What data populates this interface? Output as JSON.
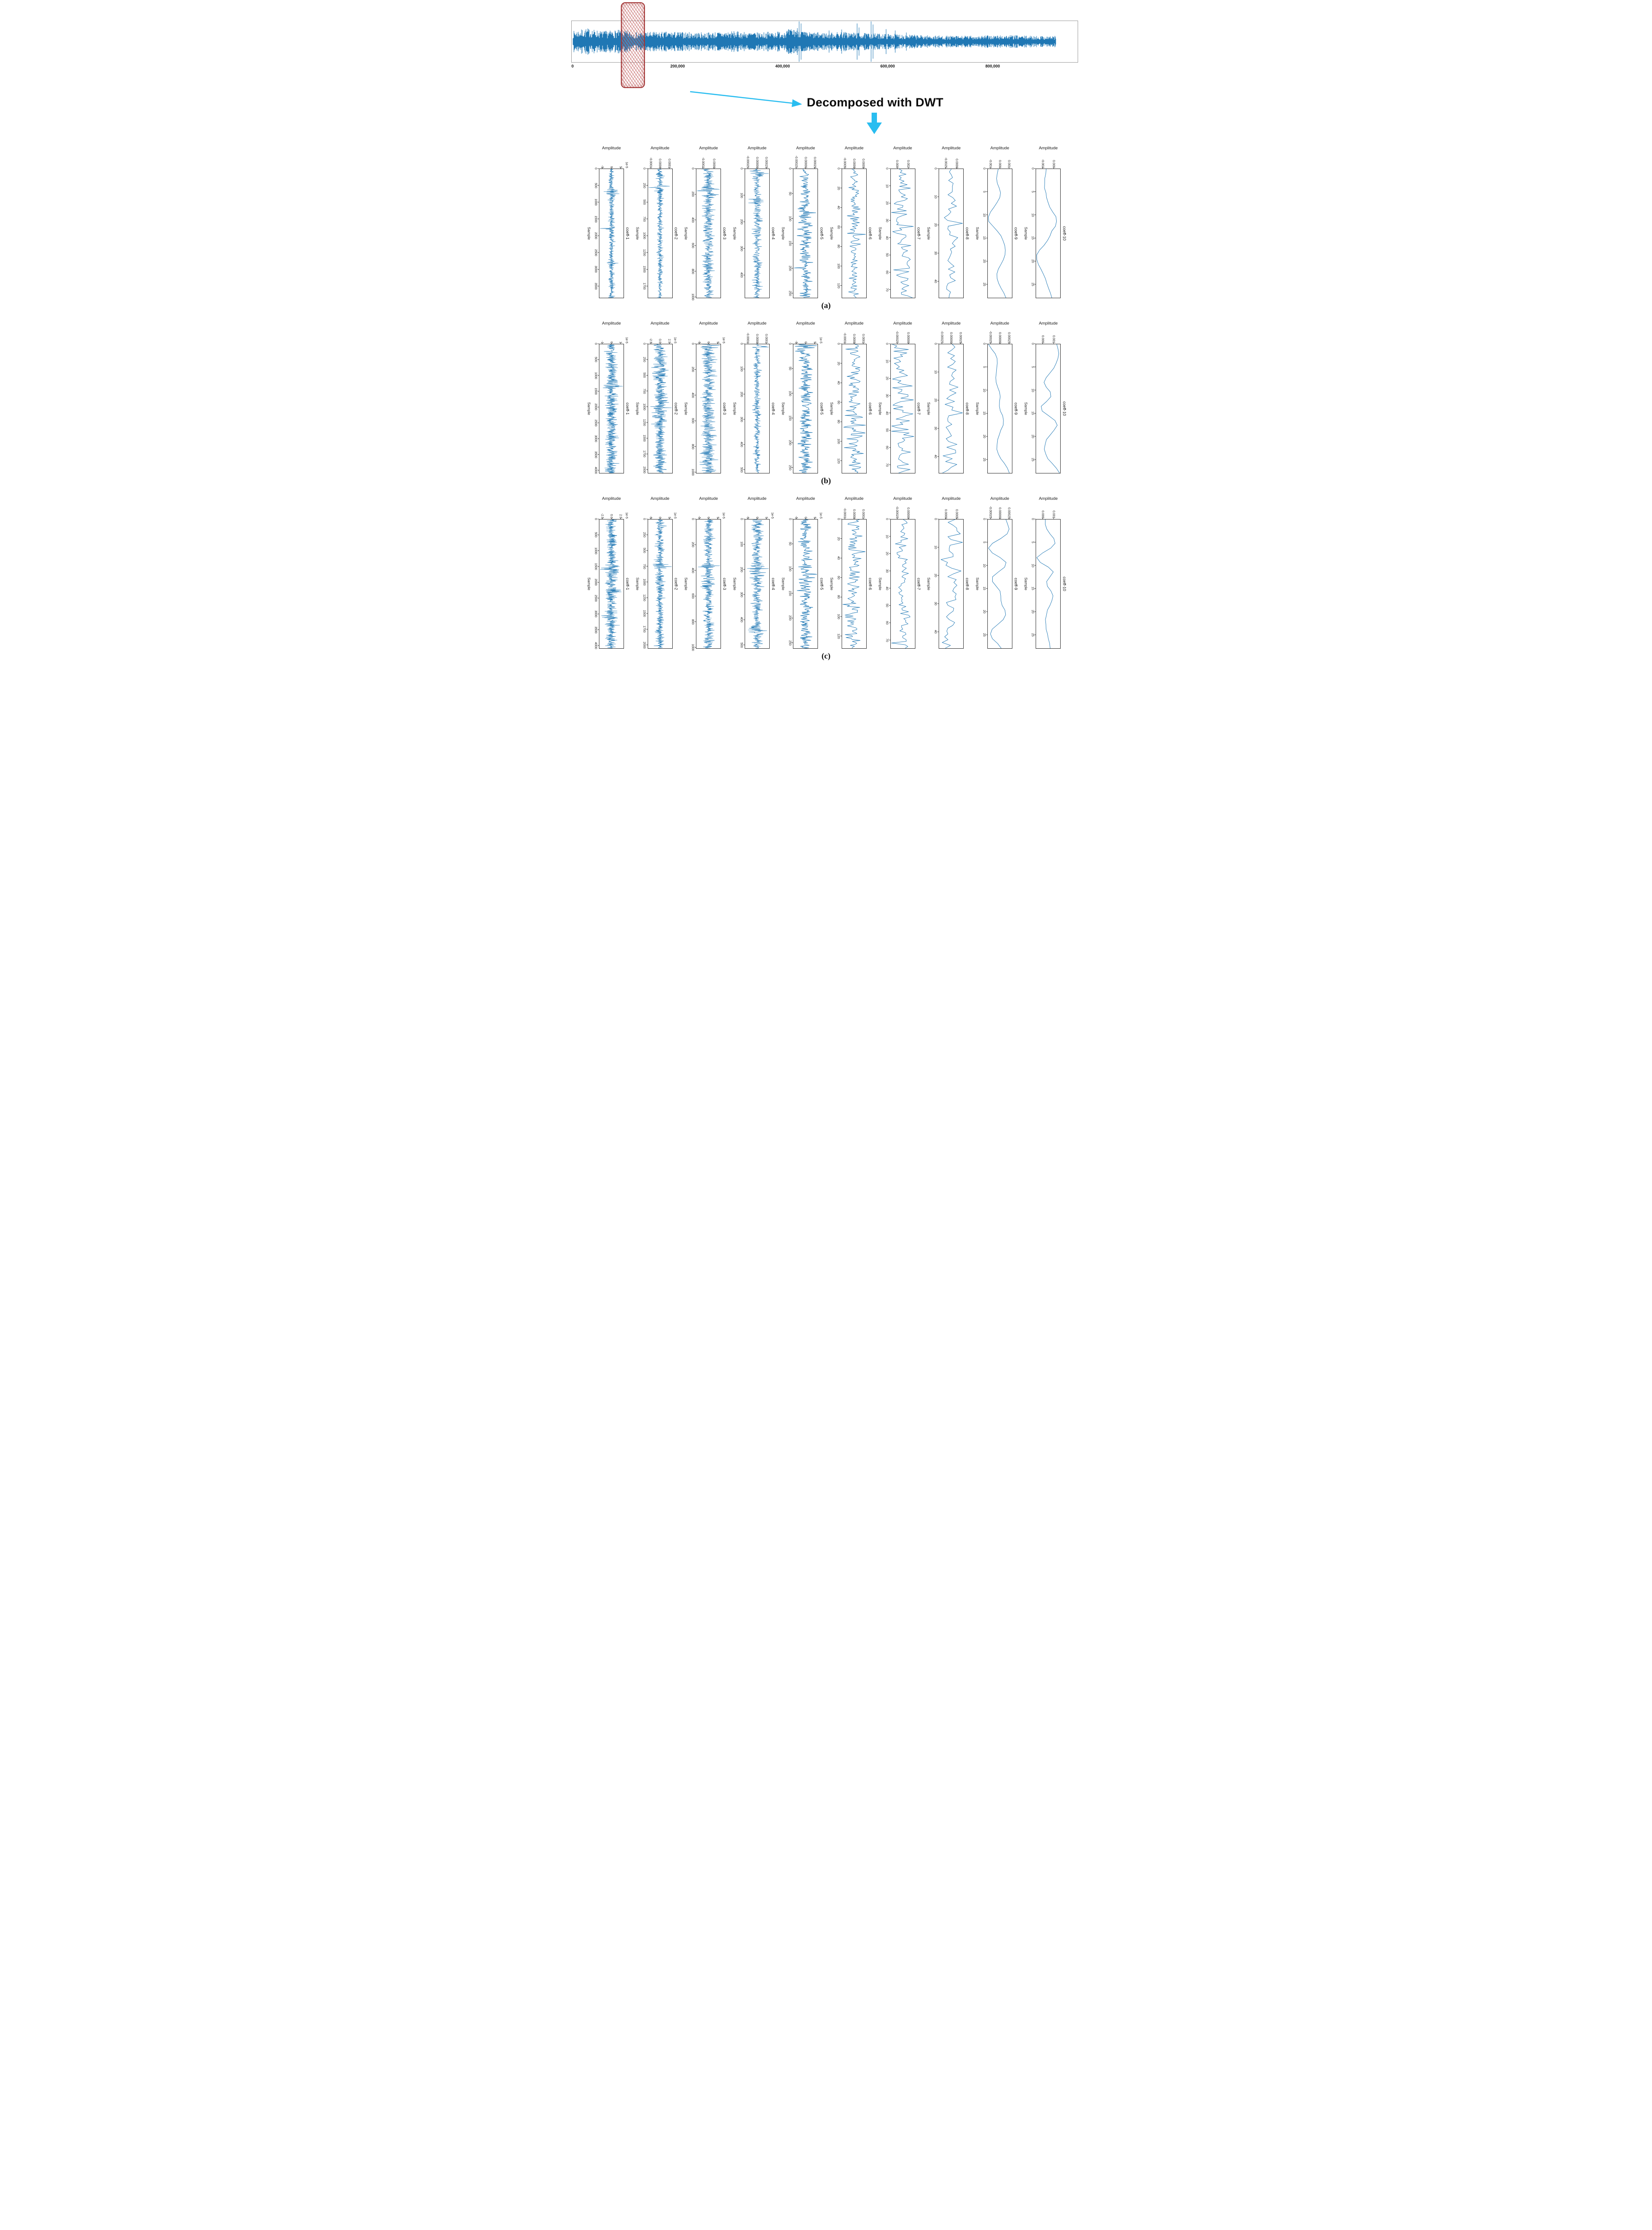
{
  "figure": {
    "annotation": "Decomposed with DWT",
    "row_labels": [
      "(a)",
      "(b)",
      "(c)"
    ],
    "axis_titles": {
      "amplitude": "Amplitude",
      "sample": "Sample"
    },
    "line_color": "#1f77b4",
    "accent_color": "#29bdf0",
    "highlight_border": "#a23535",
    "coeff_labels": [
      "coeff-1",
      "coeff-2",
      "coeff-3",
      "coeff-4",
      "coeff-5",
      "coeff-6",
      "coeff-7",
      "coeff-8",
      "coeff-9",
      "coeff-10"
    ]
  },
  "chart_data": [
    {
      "type": "line",
      "id": "raw-signal",
      "x_ticks": [
        "0",
        "200,000",
        "400,000",
        "600,000",
        "800,000"
      ],
      "x_tick_values": [
        0,
        200000,
        400000,
        600000,
        800000
      ],
      "x_max": 955000,
      "signal_end": 920000,
      "seed": 7,
      "envelope": [
        [
          0,
          0.55
        ],
        [
          0.03,
          0.7
        ],
        [
          0.06,
          0.55
        ],
        [
          0.1,
          0.62
        ],
        [
          0.13,
          0.5
        ],
        [
          0.2,
          0.52
        ],
        [
          0.27,
          0.48
        ],
        [
          0.33,
          0.55
        ],
        [
          0.38,
          0.48
        ],
        [
          0.43,
          0.55
        ],
        [
          0.465,
          0.75
        ],
        [
          0.48,
          0.5
        ],
        [
          0.52,
          0.48
        ],
        [
          0.56,
          0.52
        ],
        [
          0.6,
          0.45
        ],
        [
          0.64,
          0.42
        ],
        [
          0.68,
          0.4
        ],
        [
          0.72,
          0.34
        ],
        [
          0.78,
          0.3
        ],
        [
          0.84,
          0.32
        ],
        [
          0.9,
          0.34
        ],
        [
          0.95,
          0.3
        ],
        [
          1,
          0.3
        ]
      ],
      "spikes": [
        [
          0.468,
          1.0
        ],
        [
          0.472,
          0.9
        ],
        [
          0.53,
          0.55
        ],
        [
          0.556,
          0.6
        ],
        [
          0.588,
          0.9
        ],
        [
          0.592,
          0.7
        ],
        [
          0.617,
          1.0
        ],
        [
          0.621,
          0.85
        ],
        [
          0.648,
          0.62
        ],
        [
          0.667,
          0.55
        ],
        [
          0.69,
          0.45
        ]
      ]
    },
    {
      "type": "line",
      "id": "a",
      "row_label": "(a)",
      "subplots": [
        {
          "label": "coeff-1",
          "amp": [
            "-5",
            "0",
            "5"
          ],
          "off": "1e-5",
          "sticks": [
            0,
            500,
            1000,
            1500,
            2000,
            2500,
            3000,
            3500
          ],
          "smax": 3860,
          "n": 700,
          "kind": "dense",
          "seed": 11,
          "bumps": [
            [
              0.17,
              2.6,
              0.018
            ],
            [
              0.2,
              1.4,
              0.01
            ],
            [
              0.465,
              2.2,
              0.012
            ],
            [
              0.52,
              0.7,
              0.01
            ],
            [
              0.73,
              0.9,
              0.01
            ]
          ]
        },
        {
          "label": "coeff-2",
          "amp": [
            "-0.0001",
            "0.0000",
            "0.0001"
          ],
          "off": null,
          "sticks": [
            0,
            250,
            500,
            750,
            1000,
            1250,
            1500,
            1750
          ],
          "smax": 1930,
          "n": 640,
          "kind": "dense",
          "seed": 12,
          "bumps": [
            [
              0.05,
              0.8,
              0.02
            ],
            [
              0.14,
              2.8,
              0.012
            ],
            [
              0.175,
              2.0,
              0.01
            ]
          ]
        },
        {
          "label": "coeff-3",
          "amp": [
            "-0.0002",
            "0.0000"
          ],
          "off": null,
          "sticks": [
            0,
            200,
            400,
            600,
            800,
            1000
          ],
          "smax": 1010,
          "n": 560,
          "kind": "dense",
          "seed": 13,
          "bumps": [
            [
              0.16,
              2.4,
              0.012
            ],
            [
              0.2,
              1.2,
              0.008
            ],
            [
              0.75,
              0.7,
              0.01
            ]
          ]
        },
        {
          "label": "coeff-4",
          "amp": [
            "-0.00025",
            "0.00000",
            "0.00025"
          ],
          "off": null,
          "sticks": [
            0,
            100,
            200,
            300,
            400
          ],
          "smax": 487,
          "n": 487,
          "kind": "dense",
          "seed": 14,
          "bumps": [
            [
              0.03,
              2.6,
              0.02
            ],
            [
              0.25,
              1.0,
              0.02
            ],
            [
              0.5,
              0.8,
              0.03
            ],
            [
              0.9,
              0.7,
              0.02
            ]
          ]
        },
        {
          "label": "coeff-5",
          "amp": [
            "-0.00025",
            "0.00000",
            "0.00025"
          ],
          "off": null,
          "sticks": [
            0,
            50,
            100,
            150,
            200,
            250
          ],
          "smax": 260,
          "n": 260,
          "kind": "mid",
          "seed": 15,
          "bumps": [
            [
              0.4,
              0.9,
              0.12
            ],
            [
              0.75,
              0.5,
              0.1
            ]
          ]
        },
        {
          "label": "coeff-6",
          "amp": [
            "-0.0005",
            "0.0000",
            "0.0005"
          ],
          "off": null,
          "sticks": [
            0,
            20,
            40,
            60,
            80,
            100,
            120
          ],
          "smax": 133,
          "n": 133,
          "kind": "mid",
          "seed": 16,
          "bumps": [
            [
              0.45,
              0.8,
              0.15
            ]
          ]
        },
        {
          "label": "coeff-7",
          "amp": [
            "0.000",
            "0.002"
          ],
          "off": null,
          "sticks": [
            0,
            10,
            20,
            30,
            40,
            50,
            60,
            70
          ],
          "smax": 75,
          "n": 75,
          "kind": "sparse",
          "seed": 17,
          "bumps": [
            [
              0.45,
              2.2,
              0.04
            ]
          ]
        },
        {
          "label": "coeff-8",
          "amp": [
            "-0.0025",
            "0.0000"
          ],
          "off": null,
          "sticks": [
            0,
            10,
            20,
            30,
            40
          ],
          "smax": 46,
          "n": 46,
          "kind": "sparse",
          "seed": 18,
          "bumps": [
            [
              0.42,
              1.6,
              0.07
            ]
          ]
        },
        {
          "label": "coeff-9",
          "amp": [
            "-0.001",
            "0.000",
            "0.001"
          ],
          "off": null,
          "sticks": [
            0,
            5,
            10,
            15,
            20,
            25
          ],
          "smax": 28,
          "n": 28,
          "kind": "smooth",
          "seed": 19,
          "bumps": [
            [
              0.35,
              1.2,
              0.15
            ]
          ]
        },
        {
          "label": "coeff-10",
          "amp": [
            "-0.002",
            "0.000"
          ],
          "off": null,
          "sticks": [
            0,
            5,
            10,
            15,
            20,
            25
          ],
          "smax": 28,
          "n": 28,
          "kind": "smooth",
          "seed": 20,
          "bumps": [
            [
              0.55,
              1.0,
              0.2
            ]
          ]
        }
      ]
    },
    {
      "type": "line",
      "id": "b",
      "row_label": "(b)",
      "subplots": [
        {
          "label": "coeff-1",
          "amp": [
            "-1",
            "0",
            "1"
          ],
          "off": "1e-5",
          "sticks": [
            0,
            500,
            1000,
            1500,
            2000,
            2500,
            3000,
            3500,
            4000
          ],
          "smax": 4100,
          "n": 700,
          "kind": "dense",
          "seed": 21,
          "bumps": [
            [
              0.3,
              1.4,
              0.02
            ],
            [
              0.33,
              1.0,
              0.015
            ],
            [
              0.5,
              0.6,
              0.02
            ]
          ]
        },
        {
          "label": "coeff-2",
          "amp": [
            "-2.5",
            "0.0",
            "2.5"
          ],
          "off": "1e-5",
          "sticks": [
            0,
            250,
            500,
            750,
            1000,
            1250,
            1500,
            1750,
            2000
          ],
          "smax": 2060,
          "n": 660,
          "kind": "dense",
          "seed": 22,
          "bumps": [
            [
              0.2,
              0.5,
              0.05
            ],
            [
              0.5,
              0.4,
              0.05
            ]
          ]
        },
        {
          "label": "coeff-3",
          "amp": [
            "-5",
            "0",
            "5"
          ],
          "off": "1e-5",
          "sticks": [
            0,
            200,
            400,
            600,
            800,
            1000
          ],
          "smax": 1010,
          "n": 560,
          "kind": "dense",
          "seed": 23,
          "bumps": [
            [
              0.02,
              1.8,
              0.008
            ]
          ]
        },
        {
          "label": "coeff-4",
          "amp": [
            "-0.0001",
            "0.0000",
            "0.0001"
          ],
          "off": null,
          "sticks": [
            0,
            100,
            200,
            300,
            400,
            500
          ],
          "smax": 515,
          "n": 515,
          "kind": "dense",
          "seed": 24,
          "bumps": [
            [
              0.02,
              5.0,
              0.006
            ],
            [
              0.5,
              0.5,
              0.05
            ]
          ]
        },
        {
          "label": "coeff-5",
          "amp": [
            "-5",
            "0",
            "5"
          ],
          "off": "1e-5",
          "sticks": [
            0,
            50,
            100,
            150,
            200,
            250
          ],
          "smax": 262,
          "n": 262,
          "kind": "mid",
          "seed": 25,
          "bumps": [
            [
              0.05,
              1.2,
              0.03
            ]
          ]
        },
        {
          "label": "coeff-6",
          "amp": [
            "-0.0001",
            "0.0000",
            "0.0001"
          ],
          "off": null,
          "sticks": [
            0,
            20,
            40,
            60,
            80,
            100,
            120
          ],
          "smax": 133,
          "n": 133,
          "kind": "mid",
          "seed": 26,
          "bumps": [
            [
              0.65,
              0.7,
              0.1
            ]
          ]
        },
        {
          "label": "coeff-7",
          "amp": [
            "-0.00025",
            "0.00000"
          ],
          "off": null,
          "sticks": [
            0,
            10,
            20,
            30,
            40,
            50,
            60,
            70
          ],
          "smax": 75,
          "n": 75,
          "kind": "sparse",
          "seed": 27,
          "bumps": []
        },
        {
          "label": "coeff-8",
          "amp": [
            "-0.00025",
            "0.00000",
            "0.00025"
          ],
          "off": null,
          "sticks": [
            0,
            10,
            20,
            30,
            40
          ],
          "smax": 46,
          "n": 46,
          "kind": "sparse",
          "seed": 28,
          "bumps": []
        },
        {
          "label": "coeff-9",
          "amp": [
            "-0.00025",
            "0.00000",
            "0.00025"
          ],
          "off": null,
          "sticks": [
            0,
            5,
            10,
            15,
            20,
            25
          ],
          "smax": 28,
          "n": 28,
          "kind": "smooth",
          "seed": 29,
          "bumps": []
        },
        {
          "label": "coeff-10",
          "amp": [
            "0.000",
            "0.001"
          ],
          "off": null,
          "sticks": [
            0,
            5,
            10,
            15,
            20,
            25
          ],
          "smax": 28,
          "n": 28,
          "kind": "smooth",
          "seed": 30,
          "bumps": [
            [
              0.4,
              1.1,
              0.18
            ]
          ]
        }
      ]
    },
    {
      "type": "line",
      "id": "c",
      "row_label": "(c)",
      "subplots": [
        {
          "label": "coeff-1",
          "amp": [
            "-2.5",
            "0.0",
            "2.5"
          ],
          "off": "1e-5",
          "sticks": [
            0,
            500,
            1000,
            1500,
            2000,
            2500,
            3000,
            3500,
            4000
          ],
          "smax": 4100,
          "n": 700,
          "kind": "dense",
          "seed": 31,
          "bumps": [
            [
              0.38,
              1.1,
              0.03
            ],
            [
              0.56,
              1.0,
              0.015
            ],
            [
              0.76,
              1.2,
              0.012
            ]
          ]
        },
        {
          "label": "coeff-2",
          "amp": [
            "-5",
            "0",
            "5"
          ],
          "off": "1e-5",
          "sticks": [
            0,
            250,
            500,
            750,
            1000,
            1250,
            1500,
            1750,
            2000
          ],
          "smax": 2060,
          "n": 660,
          "kind": "dense",
          "seed": 32,
          "bumps": [
            [
              0.36,
              1.4,
              0.02
            ]
          ]
        },
        {
          "label": "coeff-3",
          "amp": [
            "-5",
            "0",
            "5"
          ],
          "off": "1e-5",
          "sticks": [
            0,
            200,
            400,
            600,
            800,
            1000
          ],
          "smax": 1010,
          "n": 560,
          "kind": "dense",
          "seed": 33,
          "bumps": [
            [
              0.36,
              1.6,
              0.015
            ],
            [
              0.5,
              0.8,
              0.02
            ]
          ]
        },
        {
          "label": "coeff-4",
          "amp": [
            "-5",
            "0",
            "5"
          ],
          "off": "1e-5",
          "sticks": [
            0,
            100,
            200,
            300,
            400,
            500
          ],
          "smax": 515,
          "n": 515,
          "kind": "dense",
          "seed": 34,
          "bumps": [
            [
              0.4,
              1.2,
              0.05
            ],
            [
              0.85,
              1.1,
              0.02
            ]
          ]
        },
        {
          "label": "coeff-5",
          "amp": [
            "-5",
            "0",
            "5"
          ],
          "off": "1e-5",
          "sticks": [
            0,
            50,
            100,
            150,
            200,
            250
          ],
          "smax": 262,
          "n": 262,
          "kind": "mid",
          "seed": 35,
          "bumps": [
            [
              0.45,
              0.7,
              0.1
            ]
          ]
        },
        {
          "label": "coeff-6",
          "amp": [
            "-0.0001",
            "0.0000",
            "0.0001"
          ],
          "off": null,
          "sticks": [
            0,
            20,
            40,
            60,
            80,
            100,
            120
          ],
          "smax": 133,
          "n": 133,
          "kind": "mid",
          "seed": 36,
          "bumps": []
        },
        {
          "label": "coeff-7",
          "amp": [
            "-0.00025",
            "0.00000"
          ],
          "off": null,
          "sticks": [
            0,
            10,
            20,
            30,
            40,
            50,
            60,
            70
          ],
          "smax": 75,
          "n": 75,
          "kind": "sparse",
          "seed": 37,
          "bumps": []
        },
        {
          "label": "coeff-8",
          "amp": [
            "0.0000",
            "0.0005"
          ],
          "off": null,
          "sticks": [
            0,
            10,
            20,
            30,
            40
          ],
          "smax": 46,
          "n": 46,
          "kind": "sparse",
          "seed": 38,
          "bumps": []
        },
        {
          "label": "coeff-9",
          "amp": [
            "-0.00025",
            "0.00000",
            "0.00025"
          ],
          "off": null,
          "sticks": [
            0,
            5,
            10,
            15,
            20,
            25
          ],
          "smax": 28,
          "n": 28,
          "kind": "smooth",
          "seed": 39,
          "bumps": []
        },
        {
          "label": "coeff-10",
          "amp": [
            "0.000",
            "0.001"
          ],
          "off": null,
          "sticks": [
            0,
            5,
            10,
            15,
            20,
            25
          ],
          "smax": 28,
          "n": 28,
          "kind": "smooth",
          "seed": 40,
          "bumps": [
            [
              0.4,
              1.0,
              0.2
            ]
          ]
        }
      ]
    }
  ]
}
